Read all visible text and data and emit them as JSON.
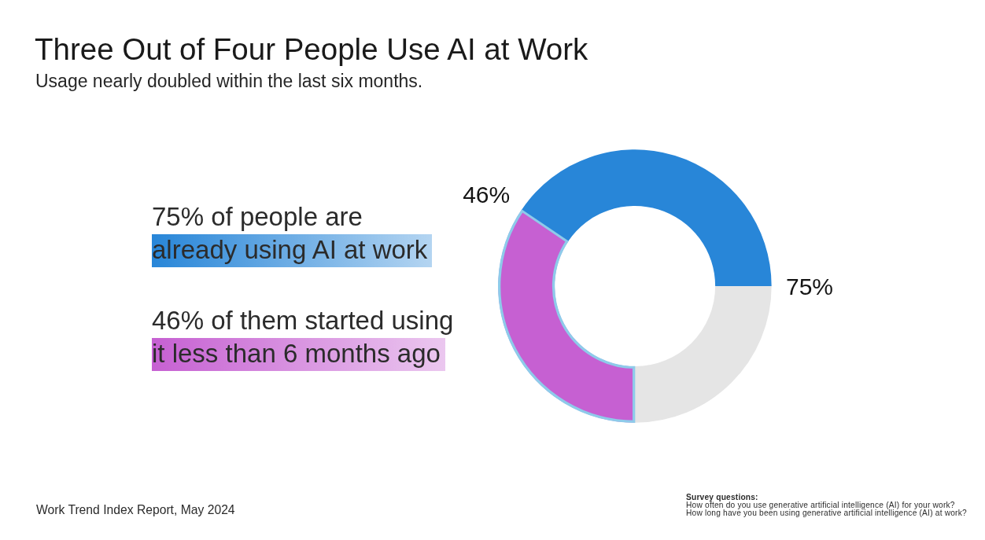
{
  "chart_data": {
    "type": "donut",
    "title": "Three Out of Four People Use AI at Work",
    "subtitle": "Usage nearly doubled within the last six months.",
    "categories": [
      null,
      null,
      null
    ],
    "values": [
      25,
      34.5,
      40.5
    ],
    "colors": [
      "#e5e5e5",
      "#c660d2",
      "#2886d8"
    ],
    "legend": false,
    "annotations": [
      "75%",
      "46%",
      "75% of people are",
      "already using AI at work",
      "46% of them started using",
      "it less than 6 months ago",
      "Work Trend Index Report, May 2024",
      "Survey questions:",
      "How often do you use generative artificial intelligence (AI) for your work?",
      "How long have you been using generative artificial intelligence (AI) at work?"
    ]
  }
}
